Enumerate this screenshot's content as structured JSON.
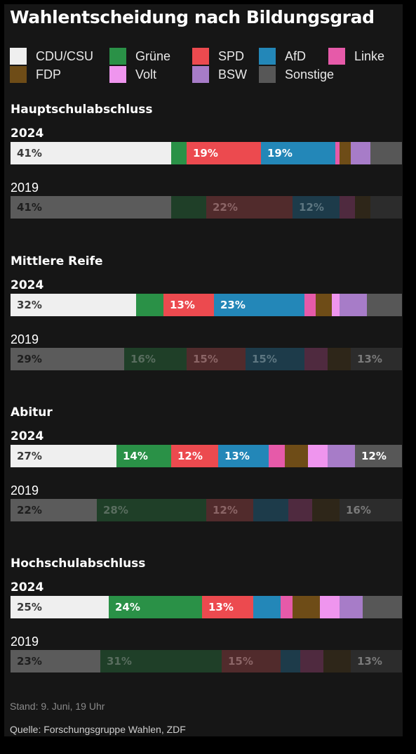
{
  "title": "Wahlentscheidung nach Bildungsgrad",
  "footer": {
    "stand": "Stand: 9. Juni, 19 Uhr",
    "quelle": "Quelle: Forschungsgruppe Wahlen, ZDF"
  },
  "parties": [
    {
      "name": "CDU/CSU",
      "color": "#efefef",
      "text": "#3a3a3a",
      "faded": "#5b5b5b",
      "faded_text": "#1e1e1e"
    },
    {
      "name": "Grüne",
      "color": "#2a9147",
      "text": "#ffffff",
      "faded": "#1f3f28",
      "faded_text": "#596d5f"
    },
    {
      "name": "SPD",
      "color": "#ec4a4f",
      "text": "#ffffff",
      "faded": "#512b2c",
      "faded_text": "#8b6566"
    },
    {
      "name": "AfD",
      "color": "#2387b8",
      "text": "#ffffff",
      "faded": "#1d3b4a",
      "faded_text": "#5d7681"
    },
    {
      "name": "Linke",
      "color": "#e65aa9",
      "text": "#ffffff",
      "faded": "#4f2a3f",
      "faded_text": "#8a6a7c"
    },
    {
      "name": "FDP",
      "color": "#6e4c17",
      "text": "#ffffff",
      "faded": "#2e2619",
      "faded_text": "#6a6052"
    },
    {
      "name": "Volt",
      "color": "#ef95ee",
      "text": "#ffffff",
      "faded": "#513a51",
      "faded_text": "#8a7a8a"
    },
    {
      "name": "BSW",
      "color": "#a77cc8",
      "text": "#ffffff",
      "faded": "#3c3347",
      "faded_text": "#7b7386"
    },
    {
      "name": "Sonstige",
      "color": "#575757",
      "text": "#ffffff",
      "faded": "#2c2c2c",
      "faded_text": "#7a7a7a"
    }
  ],
  "chart_data": {
    "type": "bar",
    "stacked": true,
    "unit": "%",
    "series_names": [
      "CDU/CSU",
      "Grüne",
      "SPD",
      "AfD",
      "Linke",
      "FDP",
      "Volt",
      "BSW",
      "Sonstige"
    ],
    "groups": [
      {
        "name": "Hauptschulabschluss",
        "rows": [
          {
            "year": "2024",
            "current": true,
            "values": [
              41,
              4,
              19,
              19,
              1,
              3,
              0,
              5,
              8
            ],
            "labels": [
              "41%",
              "",
              "19%",
              "19%",
              "",
              "",
              "",
              "",
              ""
            ]
          },
          {
            "year": "2019",
            "current": false,
            "values": [
              41,
              9,
              22,
              12,
              4,
              4,
              0,
              0,
              8
            ],
            "labels": [
              "41%",
              "",
              "22%",
              "12%",
              "",
              "",
              "",
              "",
              ""
            ]
          }
        ]
      },
      {
        "name": "Mittlere Reife",
        "rows": [
          {
            "year": "2024",
            "current": true,
            "values": [
              32,
              7,
              13,
              23,
              3,
              4,
              2,
              7,
              9
            ],
            "labels": [
              "32%",
              "",
              "13%",
              "23%",
              "",
              "",
              "",
              "",
              ""
            ]
          },
          {
            "year": "2019",
            "current": false,
            "values": [
              29,
              16,
              15,
              15,
              6,
              6,
              0,
              0,
              13
            ],
            "labels": [
              "29%",
              "16%",
              "15%",
              "15%",
              "",
              "",
              "",
              "",
              "13%"
            ]
          }
        ]
      },
      {
        "name": "Abitur",
        "rows": [
          {
            "year": "2024",
            "current": true,
            "values": [
              27,
              14,
              12,
              13,
              4,
              6,
              5,
              7,
              12
            ],
            "labels": [
              "27%",
              "14%",
              "12%",
              "13%",
              "",
              "",
              "",
              "",
              "12%"
            ]
          },
          {
            "year": "2019",
            "current": false,
            "values": [
              22,
              28,
              12,
              9,
              6,
              7,
              0,
              0,
              16
            ],
            "labels": [
              "22%",
              "28%",
              "12%",
              "",
              "",
              "",
              "",
              "",
              "16%"
            ]
          }
        ]
      },
      {
        "name": "Hochschulabschluss",
        "rows": [
          {
            "year": "2024",
            "current": true,
            "values": [
              25,
              24,
              13,
              7,
              3,
              7,
              5,
              6,
              10
            ],
            "labels": [
              "25%",
              "24%",
              "13%",
              "",
              "",
              "",
              "",
              "",
              ""
            ]
          },
          {
            "year": "2019",
            "current": false,
            "values": [
              23,
              31,
              15,
              5,
              6,
              7,
              0,
              0,
              13
            ],
            "labels": [
              "23%",
              "31%",
              "15%",
              "",
              "",
              "",
              "",
              "",
              "13%"
            ]
          }
        ]
      }
    ]
  }
}
